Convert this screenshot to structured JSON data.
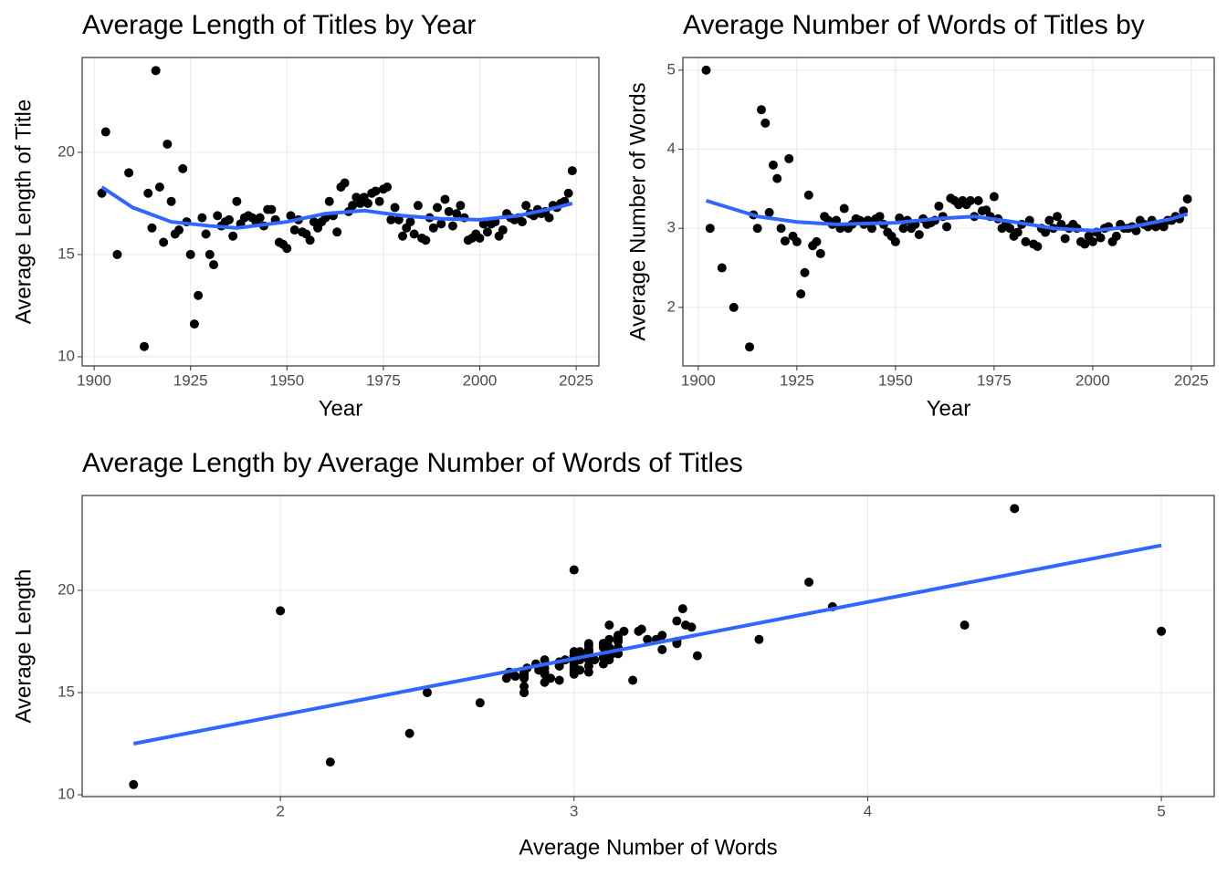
{
  "chart_data": [
    {
      "type": "scatter",
      "title": "Average Length of Titles by Year",
      "x_label": "Year",
      "y_label": "Average Length of Title",
      "x": [
        1902,
        1903,
        1906,
        1909,
        1913,
        1914,
        1915,
        1916,
        1917,
        1918,
        1919,
        1920,
        1921,
        1922,
        1923,
        1924,
        1925,
        1926,
        1927,
        1928,
        1929,
        1930,
        1931,
        1932,
        1933,
        1934,
        1935,
        1936,
        1937,
        1938,
        1939,
        1940,
        1941,
        1942,
        1943,
        1944,
        1945,
        1946,
        1947,
        1948,
        1949,
        1950,
        1951,
        1952,
        1953,
        1954,
        1955,
        1956,
        1957,
        1958,
        1959,
        1960,
        1961,
        1962,
        1963,
        1964,
        1965,
        1966,
        1967,
        1968,
        1969,
        1970,
        1971,
        1972,
        1973,
        1974,
        1975,
        1976,
        1977,
        1978,
        1979,
        1980,
        1981,
        1982,
        1983,
        1984,
        1985,
        1986,
        1987,
        1988,
        1989,
        1990,
        1991,
        1992,
        1993,
        1994,
        1995,
        1996,
        1997,
        1998,
        1999,
        2000,
        2001,
        2002,
        2003,
        2004,
        2005,
        2006,
        2007,
        2008,
        2009,
        2010,
        2011,
        2012,
        2013,
        2014,
        2015,
        2016,
        2017,
        2018,
        2019,
        2020,
        2021,
        2022,
        2023,
        2024
      ],
      "values": [
        18,
        21,
        15,
        19,
        10.5,
        18,
        16.3,
        24,
        18.3,
        15.6,
        20.4,
        17.6,
        16,
        16.2,
        19.2,
        16.6,
        15,
        11.6,
        13,
        16.8,
        16,
        15,
        14.5,
        16.9,
        16.4,
        16.6,
        16.7,
        15.9,
        17.6,
        16.5,
        16.8,
        16.9,
        16.8,
        16.6,
        16.8,
        16.4,
        17.2,
        17.2,
        16.7,
        15.6,
        15.5,
        15.3,
        16.9,
        16.2,
        16.7,
        16.1,
        16,
        15.7,
        16.6,
        16.3,
        16.6,
        16.8,
        17.6,
        16.9,
        16.1,
        18.3,
        18.5,
        17.1,
        17.4,
        17.8,
        17.5,
        17.8,
        17.5,
        18,
        18.1,
        17.6,
        18.2,
        18.3,
        16.7,
        17.3,
        16.7,
        15.9,
        16.3,
        16.6,
        16,
        17.4,
        15.8,
        15.7,
        16.8,
        16.3,
        17.3,
        16.5,
        17.7,
        17.1,
        16.4,
        17,
        17.4,
        16.8,
        15.7,
        15.8,
        16,
        15.8,
        16.5,
        16.1,
        16.5,
        16.6,
        15.9,
        16.2,
        17,
        16.8,
        16.7,
        16.8,
        16.6,
        17.4,
        17,
        16.9,
        17.2,
        17,
        17.1,
        16.8,
        17.4,
        17.3,
        17.5,
        17.6,
        18,
        19.1
      ],
      "color": "#000000",
      "trend": {
        "x": [
          1902,
          1910,
          1920,
          1930,
          1937,
          1950,
          1960,
          1970,
          1980,
          1990,
          2000,
          2010,
          2020,
          2024
        ],
        "values": [
          18.3,
          17.3,
          16.6,
          16.4,
          16.3,
          16.6,
          17,
          17.15,
          16.9,
          16.75,
          16.7,
          16.9,
          17.3,
          17.5
        ],
        "color": "#3366ff"
      },
      "xlim": [
        1896.9,
        2030.9
      ],
      "ylim": [
        9.55,
        24.64
      ],
      "xticks": [
        1900,
        1925,
        1950,
        1975,
        2000,
        2025
      ],
      "yticks": [
        10,
        15,
        20
      ],
      "grid": true
    },
    {
      "type": "scatter",
      "title": "Average Number of Words of Titles by",
      "x_label": "Year",
      "y_label": "Average Number of Words",
      "x": [
        1902,
        1903,
        1906,
        1909,
        1913,
        1914,
        1915,
        1916,
        1917,
        1918,
        1919,
        1920,
        1921,
        1922,
        1923,
        1924,
        1925,
        1926,
        1927,
        1928,
        1929,
        1930,
        1931,
        1932,
        1933,
        1934,
        1935,
        1936,
        1937,
        1938,
        1939,
        1940,
        1941,
        1942,
        1943,
        1944,
        1945,
        1946,
        1947,
        1948,
        1949,
        1950,
        1951,
        1952,
        1953,
        1954,
        1955,
        1956,
        1957,
        1958,
        1959,
        1960,
        1961,
        1962,
        1963,
        1964,
        1965,
        1966,
        1967,
        1968,
        1969,
        1970,
        1971,
        1972,
        1973,
        1974,
        1975,
        1976,
        1977,
        1978,
        1979,
        1980,
        1981,
        1982,
        1983,
        1984,
        1985,
        1986,
        1987,
        1988,
        1989,
        1990,
        1991,
        1992,
        1993,
        1994,
        1995,
        1996,
        1997,
        1998,
        1999,
        2000,
        2001,
        2002,
        2003,
        2004,
        2005,
        2006,
        2007,
        2008,
        2009,
        2010,
        2011,
        2012,
        2013,
        2014,
        2015,
        2016,
        2017,
        2018,
        2019,
        2020,
        2021,
        2022,
        2023,
        2024
      ],
      "values": [
        5,
        3,
        2.5,
        2,
        1.5,
        3.17,
        3,
        4.5,
        4.33,
        3.2,
        3.8,
        3.63,
        3,
        2.84,
        3.88,
        2.9,
        2.83,
        2.17,
        2.44,
        3.42,
        2.78,
        2.83,
        2.68,
        3.15,
        3.1,
        3.05,
        3.1,
        3,
        3.25,
        3,
        3.05,
        3.12,
        3.1,
        3.05,
        3.1,
        3,
        3.12,
        3.15,
        3.05,
        2.95,
        2.9,
        2.83,
        3.13,
        3,
        3.1,
        3,
        3.05,
        2.92,
        3.12,
        3.05,
        3.07,
        3.1,
        3.28,
        3.15,
        3.02,
        3.38,
        3.35,
        3.3,
        3.35,
        3.3,
        3.35,
        3.15,
        3.35,
        3.22,
        3.23,
        3.15,
        3.4,
        3.12,
        3,
        3.05,
        3,
        2.9,
        2.95,
        3.05,
        2.83,
        3.1,
        2.8,
        2.77,
        3,
        2.95,
        3.1,
        3,
        3.15,
        3.05,
        2.87,
        3,
        3.05,
        3,
        2.83,
        2.8,
        2.9,
        2.83,
        2.95,
        2.88,
        3,
        3.02,
        2.83,
        2.9,
        3.05,
        3,
        3,
        3.02,
        2.97,
        3.1,
        3.05,
        3.02,
        3.1,
        3.02,
        3.05,
        3.02,
        3.1,
        3.1,
        3.15,
        3.12,
        3.22,
        3.37
      ],
      "color": "#000000",
      "trend": {
        "x": [
          1902,
          1915,
          1925,
          1935,
          1950,
          1960,
          1970,
          1980,
          1990,
          2000,
          2010,
          2020,
          2024
        ],
        "values": [
          3.35,
          3.15,
          3.08,
          3.05,
          3.07,
          3.12,
          3.15,
          3.08,
          3,
          2.97,
          3.02,
          3.12,
          3.18
        ],
        "color": "#3366ff"
      },
      "xlim": [
        1896.1,
        2030.8
      ],
      "ylim": [
        1.26,
        5.16
      ],
      "xticks": [
        1900,
        1925,
        1950,
        1975,
        2000,
        2025
      ],
      "yticks": [
        2,
        3,
        4,
        5
      ],
      "grid": true
    },
    {
      "type": "scatter",
      "title": "Average Length by Average Number of Words of Titles",
      "x_label": "Average Number of Words",
      "y_label": "Average Length",
      "x": [
        5,
        3,
        2.5,
        2,
        1.5,
        3.17,
        3,
        4.5,
        4.33,
        3.2,
        3.8,
        3.63,
        3,
        2.84,
        3.88,
        2.9,
        2.83,
        2.17,
        2.44,
        3.42,
        2.78,
        2.83,
        2.68,
        3.15,
        3.1,
        3.05,
        3.1,
        3,
        3.25,
        3,
        3.05,
        3.12,
        3.1,
        3.05,
        3.1,
        3,
        3.12,
        3.15,
        3.05,
        2.95,
        2.9,
        2.83,
        3.13,
        3,
        3.1,
        3,
        3.05,
        2.92,
        3.12,
        3.05,
        3.07,
        3.1,
        3.28,
        3.15,
        3.02,
        3.38,
        3.35,
        3.3,
        3.35,
        3.3,
        3.35,
        3.15,
        3.35,
        3.22,
        3.23,
        3.15,
        3.4,
        3.12,
        3,
        3.05,
        3,
        2.9,
        2.95,
        3.05,
        2.83,
        3.1,
        2.8,
        2.77,
        3,
        2.95,
        3.1,
        3,
        3.15,
        3.05,
        2.87,
        3,
        3.05,
        3,
        2.83,
        2.8,
        2.9,
        2.83,
        2.95,
        2.88,
        3,
        3.02,
        2.83,
        2.9,
        3.05,
        3,
        3,
        3.02,
        2.97,
        3.1,
        3.05,
        3.02,
        3.1,
        3.02,
        3.05,
        3.02,
        3.1,
        3.1,
        3.15,
        3.12,
        3.22,
        3.37
      ],
      "values": [
        18,
        21,
        15,
        19,
        10.5,
        18,
        16.3,
        24,
        18.3,
        15.6,
        20.4,
        17.6,
        16,
        16.2,
        19.2,
        16.6,
        15,
        11.6,
        13,
        16.8,
        16,
        15,
        14.5,
        16.9,
        16.4,
        16.6,
        16.7,
        15.9,
        17.6,
        16.5,
        16.8,
        16.9,
        16.8,
        16.6,
        16.8,
        16.4,
        17.2,
        17.2,
        16.7,
        15.6,
        15.5,
        15.3,
        16.9,
        16.2,
        16.7,
        16.1,
        16,
        15.7,
        16.6,
        16.3,
        16.6,
        16.8,
        17.6,
        16.9,
        16.1,
        18.3,
        18.5,
        17.1,
        17.4,
        17.8,
        17.5,
        17.8,
        17.5,
        18,
        18.1,
        17.6,
        18.2,
        18.3,
        16.7,
        17.3,
        16.7,
        15.9,
        16.3,
        16.6,
        16,
        17.4,
        15.8,
        15.7,
        16.8,
        16.3,
        17.3,
        16.5,
        17.7,
        17.1,
        16.4,
        17,
        17.4,
        16.8,
        15.7,
        15.8,
        16,
        15.8,
        16.5,
        16.1,
        16.5,
        16.6,
        15.9,
        16.2,
        17,
        16.8,
        16.7,
        16.8,
        16.6,
        17.4,
        17,
        16.9,
        17.2,
        17,
        17.1,
        16.8,
        17.4,
        17.3,
        17.5,
        17.6,
        18,
        19.1
      ],
      "color": "#000000",
      "trend": {
        "x": [
          1.5,
          5
        ],
        "values": [
          12.5,
          22.2
        ],
        "color": "#3366ff"
      },
      "xlim": [
        1.325,
        5.18
      ],
      "ylim": [
        9.91,
        24.64
      ],
      "xticks": [
        2,
        3,
        4,
        5
      ],
      "yticks": [
        10,
        15,
        20
      ],
      "grid": true
    }
  ]
}
